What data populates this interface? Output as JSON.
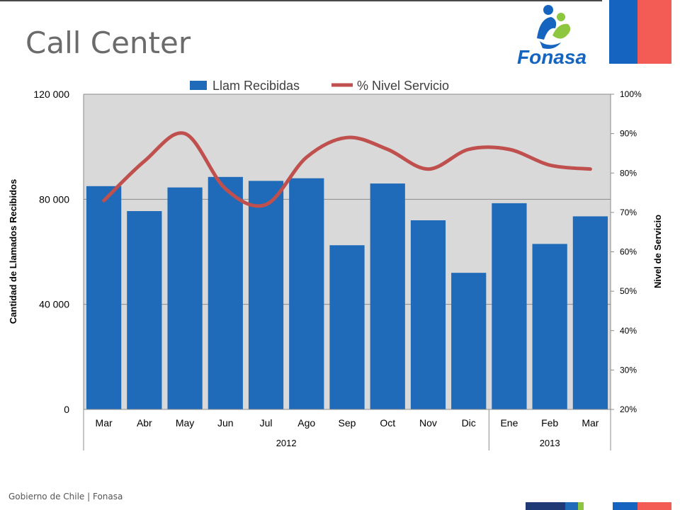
{
  "slide": {
    "title": "Call Center",
    "logo_text": "Fonasa",
    "footer": "Gobierno de Chile | Fonasa"
  },
  "colors": {
    "bar": "#1f6bb9",
    "line": "#c0504d",
    "plot_bg": "#d9d9d9",
    "flag_blue": "#1565c0",
    "flag_red": "#f25c54"
  },
  "chart_data": {
    "type": "bar",
    "categories": [
      "Mar",
      "Abr",
      "May",
      "Jun",
      "Jul",
      "Ago",
      "Sep",
      "Oct",
      "Nov",
      "Dic",
      "Ene",
      "Feb",
      "Mar"
    ],
    "year_groups": [
      {
        "label": "2012",
        "count": 10
      },
      {
        "label": "2013",
        "count": 3
      }
    ],
    "series": [
      {
        "name": "Llam Recibidas",
        "type": "bar",
        "axis": "left",
        "values": [
          85000,
          75500,
          84500,
          88500,
          87000,
          88000,
          62500,
          86000,
          72000,
          52000,
          78500,
          63000,
          73500
        ]
      },
      {
        "name": "% Nivel Servicio",
        "type": "line",
        "axis": "right",
        "values": [
          73,
          83,
          90,
          76,
          72,
          84,
          89,
          86,
          81,
          86,
          86,
          82,
          81
        ]
      }
    ],
    "ylabel": "Cantidad de Llamados Recibidos",
    "y2label": "Nivel de Servicio",
    "ylim": [
      0,
      120000
    ],
    "y2lim": [
      20,
      100
    ],
    "yticks": [
      "0",
      "40 000",
      "80 000",
      "120 000"
    ],
    "y2ticks": [
      "20%",
      "30%",
      "40%",
      "50%",
      "60%",
      "70%",
      "80%",
      "90%",
      "100%"
    ],
    "legend": "top",
    "grid": true
  }
}
